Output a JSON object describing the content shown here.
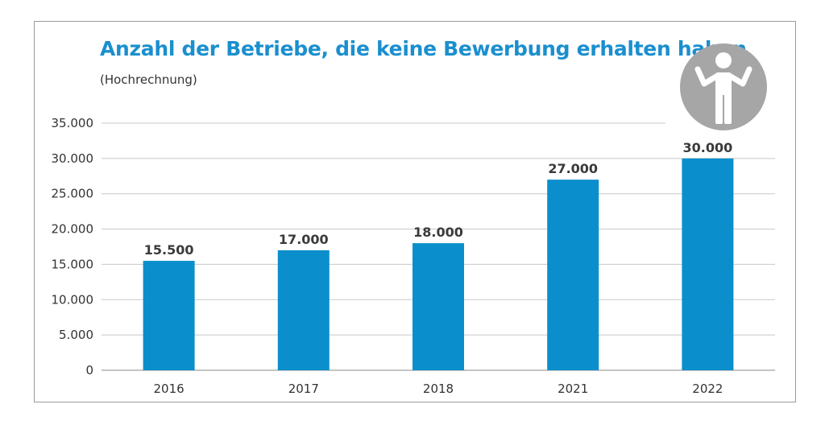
{
  "chart_data": {
    "type": "bar",
    "title": "Anzahl der Betriebe, die keine Bewerbung erhalten haben",
    "subtitle": "(Hochrechnung)",
    "categories": [
      "2016",
      "2017",
      "2018",
      "2021",
      "2022"
    ],
    "values": [
      15500,
      17000,
      18000,
      27000,
      30000
    ],
    "value_labels": [
      "15.500",
      "17.000",
      "18.000",
      "27.000",
      "30.000"
    ],
    "ylim": [
      0,
      35000
    ],
    "yticks": [
      0,
      5000,
      10000,
      15000,
      20000,
      25000,
      30000,
      35000
    ],
    "ytick_labels": [
      "0",
      "5.000",
      "10.000",
      "15.000",
      "20.000",
      "25.000",
      "30.000",
      "35.000"
    ],
    "grid": true,
    "bar_color": "#0a8fcc",
    "icon": "shrugging-person-icon",
    "icon_bg_color": "#a6a6a6"
  }
}
